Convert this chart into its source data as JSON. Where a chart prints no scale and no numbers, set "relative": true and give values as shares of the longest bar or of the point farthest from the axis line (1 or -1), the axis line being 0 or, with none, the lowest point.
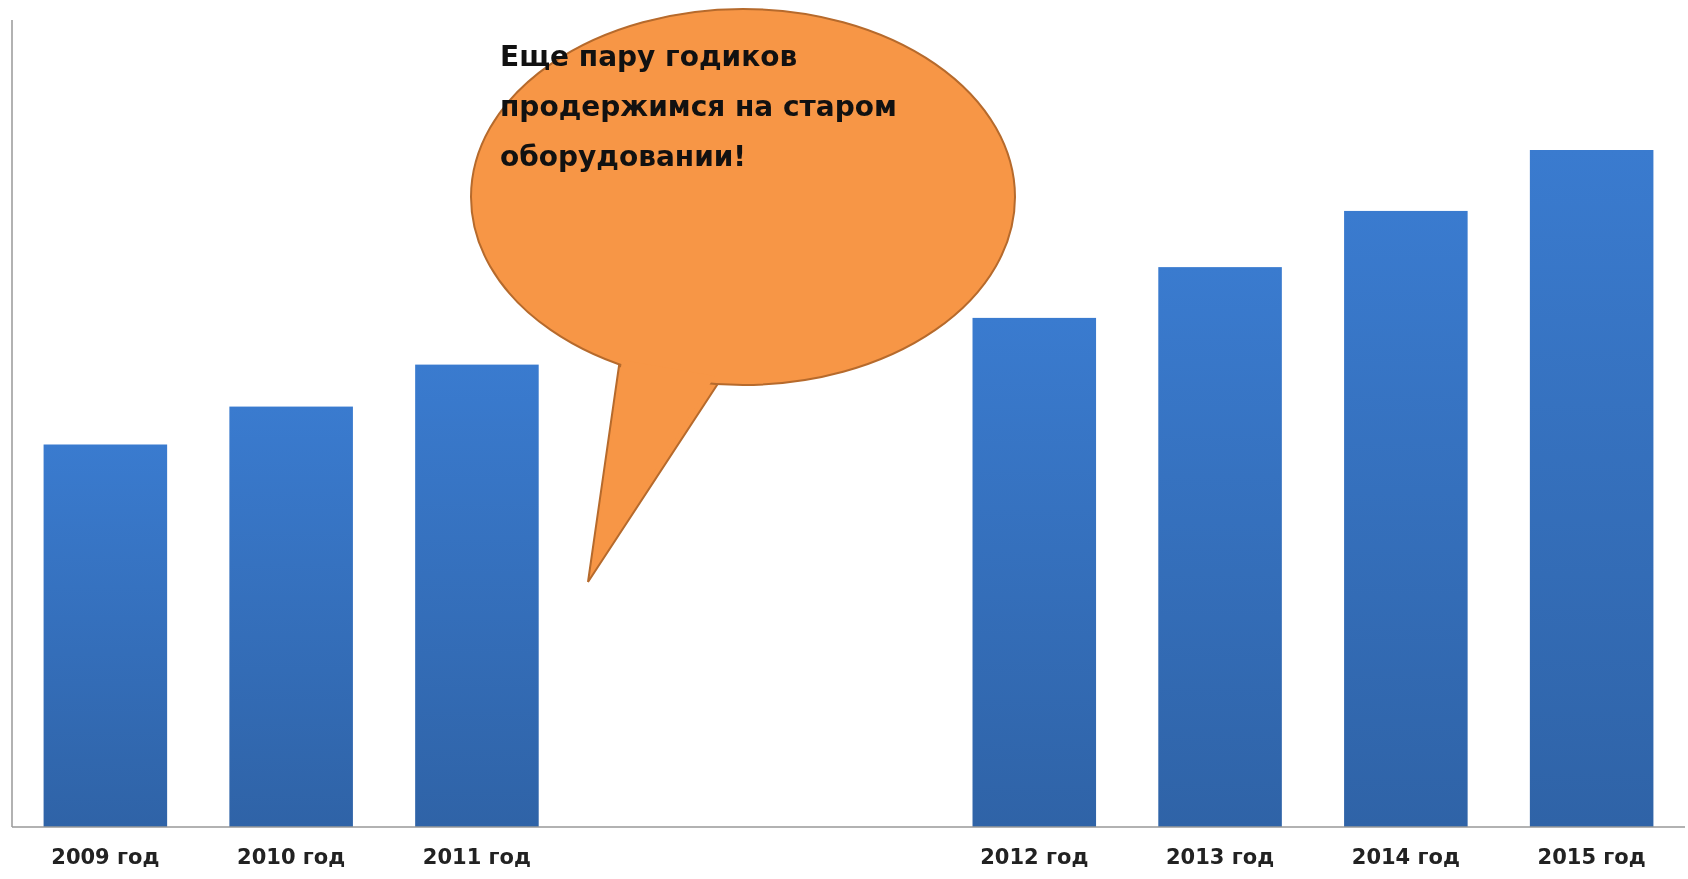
{
  "chart_data": {
    "type": "bar",
    "relative": true,
    "categories": [
      "2009 год",
      "2010 год",
      "2011 год",
      null,
      null,
      "2012 год",
      "2013 год",
      "2014 год",
      "2015 год"
    ],
    "values": [
      0.565,
      0.621,
      0.683,
      null,
      null,
      0.752,
      0.827,
      0.91,
      1
    ],
    "color": "#3a7bcf",
    "annotations": [
      "Еще пару годиков продержимся на старом оборудовании!"
    ]
  }
}
